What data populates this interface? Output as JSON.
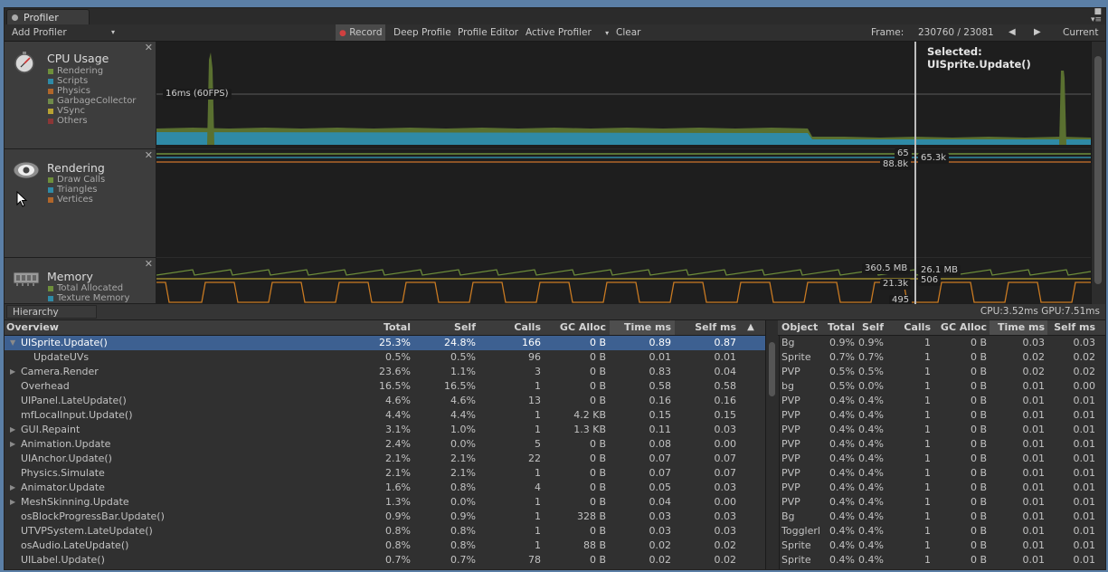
{
  "window": {
    "tab_title": "Profiler"
  },
  "toolbar": {
    "add_profiler": "Add Profiler",
    "record": "Record",
    "deep_profile": "Deep Profile",
    "profile_editor": "Profile Editor",
    "active_profiler": "Active Profiler",
    "clear": "Clear",
    "frame_label": "Frame:",
    "frame_value": "230760 / 23081",
    "current": "Current"
  },
  "lanes": {
    "cpu": {
      "title": "CPU Usage",
      "legend": [
        {
          "label": "Rendering",
          "color": "#6e8f3b"
        },
        {
          "label": "Scripts",
          "color": "#2f8aa6"
        },
        {
          "label": "Physics",
          "color": "#b0662a"
        },
        {
          "label": "GarbageCollector",
          "color": "#6f8a4a"
        },
        {
          "label": "VSync",
          "color": "#b8a233"
        },
        {
          "label": "Others",
          "color": "#8b3636"
        }
      ],
      "marker": "16ms (60FPS)",
      "selected": "Selected: UISprite.Update()"
    },
    "rendering": {
      "title": "Rendering",
      "legend": [
        {
          "label": "Draw Calls",
          "color": "#6e8f3b"
        },
        {
          "label": "Triangles",
          "color": "#2f8aa6"
        },
        {
          "label": "Vertices",
          "color": "#b0662a"
        }
      ],
      "tags": {
        "draw_calls": "65",
        "triangles": "65.3k",
        "vertices": "88.8k"
      }
    },
    "memory": {
      "title": "Memory",
      "legend": [
        {
          "label": "Total Allocated",
          "color": "#6e8f3b"
        },
        {
          "label": "Texture Memory",
          "color": "#2f8aa6"
        }
      ],
      "tags": {
        "total": "360.5 MB",
        "texture": "26.1 MB",
        "a": "21.3k",
        "b": "506",
        "c": "495"
      }
    }
  },
  "bottom": {
    "view_mode": "Hierarchy",
    "cpu_gpu": "CPU:3.52ms  GPU:7.51ms"
  },
  "hierarchy": {
    "columns": [
      "Overview",
      "Total",
      "Self",
      "Calls",
      "GC Alloc",
      "Time ms",
      "Self ms"
    ],
    "rows": [
      {
        "name": "UISprite.Update()",
        "arrow": "▼",
        "indent": 0,
        "total": "25.3%",
        "self": "24.8%",
        "calls": "166",
        "gc": "0 B",
        "time": "0.89",
        "selfms": "0.87",
        "selected": true
      },
      {
        "name": "UpdateUVs",
        "arrow": "",
        "indent": 1,
        "total": "0.5%",
        "self": "0.5%",
        "calls": "96",
        "gc": "0 B",
        "time": "0.01",
        "selfms": "0.01"
      },
      {
        "name": "Camera.Render",
        "arrow": "▶",
        "indent": 0,
        "total": "23.6%",
        "self": "1.1%",
        "calls": "3",
        "gc": "0 B",
        "time": "0.83",
        "selfms": "0.04"
      },
      {
        "name": "Overhead",
        "arrow": "",
        "indent": 0,
        "total": "16.5%",
        "self": "16.5%",
        "calls": "1",
        "gc": "0 B",
        "time": "0.58",
        "selfms": "0.58"
      },
      {
        "name": "UIPanel.LateUpdate()",
        "arrow": "",
        "indent": 0,
        "total": "4.6%",
        "self": "4.6%",
        "calls": "13",
        "gc": "0 B",
        "time": "0.16",
        "selfms": "0.16"
      },
      {
        "name": "mfLocalInput.Update()",
        "arrow": "",
        "indent": 0,
        "total": "4.4%",
        "self": "4.4%",
        "calls": "1",
        "gc": "4.2 KB",
        "time": "0.15",
        "selfms": "0.15"
      },
      {
        "name": "GUI.Repaint",
        "arrow": "▶",
        "indent": 0,
        "total": "3.1%",
        "self": "1.0%",
        "calls": "1",
        "gc": "1.3 KB",
        "time": "0.11",
        "selfms": "0.03"
      },
      {
        "name": "Animation.Update",
        "arrow": "▶",
        "indent": 0,
        "total": "2.4%",
        "self": "0.0%",
        "calls": "5",
        "gc": "0 B",
        "time": "0.08",
        "selfms": "0.00"
      },
      {
        "name": "UIAnchor.Update()",
        "arrow": "",
        "indent": 0,
        "total": "2.1%",
        "self": "2.1%",
        "calls": "22",
        "gc": "0 B",
        "time": "0.07",
        "selfms": "0.07"
      },
      {
        "name": "Physics.Simulate",
        "arrow": "",
        "indent": 0,
        "total": "2.1%",
        "self": "2.1%",
        "calls": "1",
        "gc": "0 B",
        "time": "0.07",
        "selfms": "0.07"
      },
      {
        "name": "Animator.Update",
        "arrow": "▶",
        "indent": 0,
        "total": "1.6%",
        "self": "0.8%",
        "calls": "4",
        "gc": "0 B",
        "time": "0.05",
        "selfms": "0.03"
      },
      {
        "name": "MeshSkinning.Update",
        "arrow": "▶",
        "indent": 0,
        "total": "1.3%",
        "self": "0.0%",
        "calls": "1",
        "gc": "0 B",
        "time": "0.04",
        "selfms": "0.00"
      },
      {
        "name": "osBlockProgressBar.Update()",
        "arrow": "",
        "indent": 0,
        "total": "0.9%",
        "self": "0.9%",
        "calls": "1",
        "gc": "328 B",
        "time": "0.03",
        "selfms": "0.03"
      },
      {
        "name": "UTVPSystem.LateUpdate()",
        "arrow": "",
        "indent": 0,
        "total": "0.8%",
        "self": "0.8%",
        "calls": "1",
        "gc": "0 B",
        "time": "0.03",
        "selfms": "0.03"
      },
      {
        "name": "osAudio.LateUpdate()",
        "arrow": "",
        "indent": 0,
        "total": "0.8%",
        "self": "0.8%",
        "calls": "1",
        "gc": "88 B",
        "time": "0.02",
        "selfms": "0.02"
      },
      {
        "name": "UILabel.Update()",
        "arrow": "",
        "indent": 0,
        "total": "0.7%",
        "self": "0.7%",
        "calls": "78",
        "gc": "0 B",
        "time": "0.02",
        "selfms": "0.02"
      }
    ]
  },
  "objects": {
    "columns": [
      "Object",
      "Total",
      "Self",
      "Calls",
      "GC Alloc",
      "Time ms",
      "Self ms"
    ],
    "rows": [
      {
        "name": "Bg",
        "total": "0.9%",
        "self": "0.9%",
        "calls": "1",
        "gc": "0 B",
        "time": "0.03",
        "selfms": "0.03"
      },
      {
        "name": "Sprite",
        "total": "0.7%",
        "self": "0.7%",
        "calls": "1",
        "gc": "0 B",
        "time": "0.02",
        "selfms": "0.02"
      },
      {
        "name": "PVP",
        "total": "0.5%",
        "self": "0.5%",
        "calls": "1",
        "gc": "0 B",
        "time": "0.02",
        "selfms": "0.02"
      },
      {
        "name": "bg",
        "total": "0.5%",
        "self": "0.0%",
        "calls": "1",
        "gc": "0 B",
        "time": "0.01",
        "selfms": "0.00"
      },
      {
        "name": "PVP",
        "total": "0.4%",
        "self": "0.4%",
        "calls": "1",
        "gc": "0 B",
        "time": "0.01",
        "selfms": "0.01"
      },
      {
        "name": "PVP",
        "total": "0.4%",
        "self": "0.4%",
        "calls": "1",
        "gc": "0 B",
        "time": "0.01",
        "selfms": "0.01"
      },
      {
        "name": "PVP",
        "total": "0.4%",
        "self": "0.4%",
        "calls": "1",
        "gc": "0 B",
        "time": "0.01",
        "selfms": "0.01"
      },
      {
        "name": "PVP",
        "total": "0.4%",
        "self": "0.4%",
        "calls": "1",
        "gc": "0 B",
        "time": "0.01",
        "selfms": "0.01"
      },
      {
        "name": "PVP",
        "total": "0.4%",
        "self": "0.4%",
        "calls": "1",
        "gc": "0 B",
        "time": "0.01",
        "selfms": "0.01"
      },
      {
        "name": "PVP",
        "total": "0.4%",
        "self": "0.4%",
        "calls": "1",
        "gc": "0 B",
        "time": "0.01",
        "selfms": "0.01"
      },
      {
        "name": "PVP",
        "total": "0.4%",
        "self": "0.4%",
        "calls": "1",
        "gc": "0 B",
        "time": "0.01",
        "selfms": "0.01"
      },
      {
        "name": "PVP",
        "total": "0.4%",
        "self": "0.4%",
        "calls": "1",
        "gc": "0 B",
        "time": "0.01",
        "selfms": "0.01"
      },
      {
        "name": "Bg",
        "total": "0.4%",
        "self": "0.4%",
        "calls": "1",
        "gc": "0 B",
        "time": "0.01",
        "selfms": "0.01"
      },
      {
        "name": "Togglerl",
        "total": "0.4%",
        "self": "0.4%",
        "calls": "1",
        "gc": "0 B",
        "time": "0.01",
        "selfms": "0.01"
      },
      {
        "name": "Sprite",
        "total": "0.4%",
        "self": "0.4%",
        "calls": "1",
        "gc": "0 B",
        "time": "0.01",
        "selfms": "0.01"
      },
      {
        "name": "Sprite",
        "total": "0.4%",
        "self": "0.4%",
        "calls": "1",
        "gc": "0 B",
        "time": "0.01",
        "selfms": "0.01"
      }
    ]
  }
}
